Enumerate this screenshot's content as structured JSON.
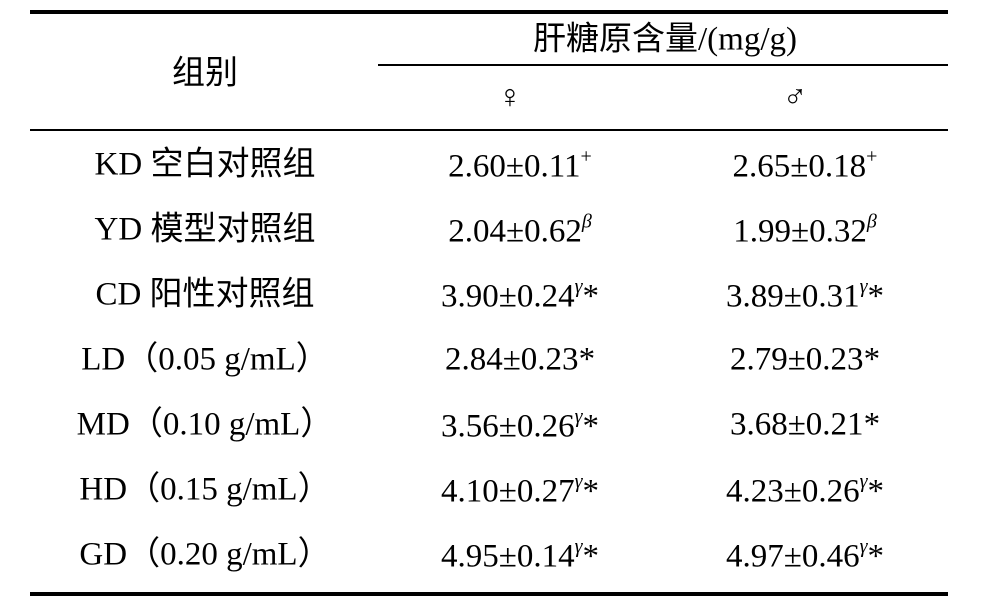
{
  "table": {
    "header": {
      "group": "组别",
      "measure": "肝糖原含量/(mg/g)",
      "female": "♀",
      "male": "♂"
    },
    "rows": [
      [
        {
          "text": "KD 空白对照组"
        },
        {
          "main": "2.60±0.11",
          "sup": "+"
        },
        {
          "main": "2.65±0.18",
          "sup": "+"
        }
      ],
      [
        {
          "text": "YD 模型对照组"
        },
        {
          "main": "2.04±0.62",
          "sup": "β"
        },
        {
          "main": "1.99±0.32",
          "sup": "β"
        }
      ],
      [
        {
          "text": "CD 阳性对照组"
        },
        {
          "main": "3.90±0.24",
          "sup": "γ",
          "tail": "*"
        },
        {
          "main": "3.89±0.31",
          "sup": "γ",
          "tail": "*"
        }
      ],
      [
        {
          "text": "LD（0.05 g/mL）"
        },
        {
          "main": "2.84±0.23",
          "tail": "*"
        },
        {
          "main": "2.79±0.23",
          "tail": "*"
        }
      ],
      [
        {
          "text": "MD（0.10 g/mL）"
        },
        {
          "main": "3.56±0.26",
          "sup": "γ",
          "tail": "*"
        },
        {
          "main": "3.68±0.21",
          "tail": "*"
        }
      ],
      [
        {
          "text": "HD（0.15 g/mL）"
        },
        {
          "main": "4.10±0.27",
          "sup": "γ",
          "tail": "*"
        },
        {
          "main": "4.23±0.26",
          "sup": "γ",
          "tail": "*"
        }
      ],
      [
        {
          "text": "GD（0.20 g/mL）"
        },
        {
          "main": "4.95±0.14",
          "sup": "γ",
          "tail": "*"
        },
        {
          "main": "4.97±0.46",
          "sup": "γ",
          "tail": "*"
        }
      ]
    ]
  }
}
